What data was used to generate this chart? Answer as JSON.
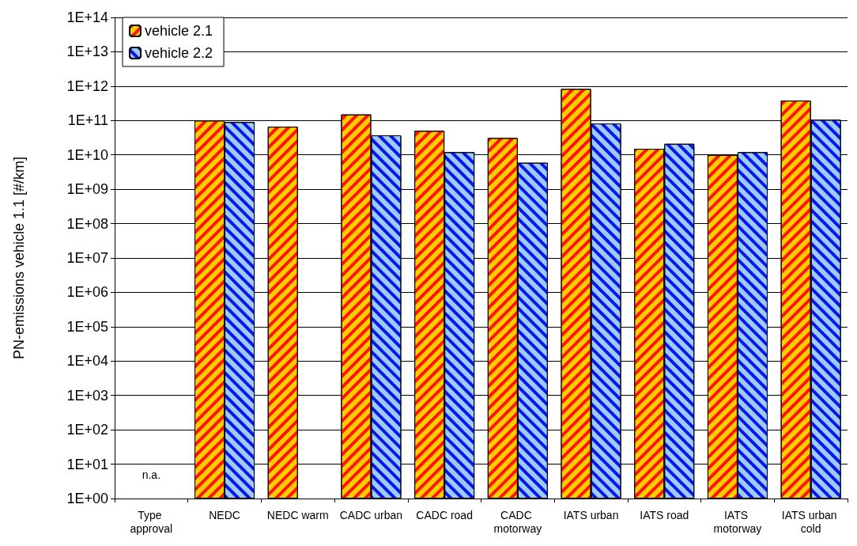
{
  "chart_data": {
    "type": "bar",
    "ylabel": "PN-emissions vehicle 1.1 [#/km]",
    "categories": [
      "Type approval",
      "NEDC",
      "NEDC warm",
      "CADC urban",
      "CADC road",
      "CADC motorway",
      "IATS urban",
      "IATS road",
      "IATS motorway",
      "IATS urban cold"
    ],
    "series": [
      {
        "name": "vehicle 2.1",
        "color": "#ffcc00",
        "values": [
          null,
          100000000000.0,
          66000000000.0,
          150000000000.0,
          50000000000.0,
          31000000000.0,
          830000000000.0,
          15000000000.0,
          10000000000.0,
          380000000000.0
        ]
      },
      {
        "name": "vehicle 2.2",
        "color": "#99ccff",
        "values": [
          null,
          90000000000.0,
          null,
          37000000000.0,
          12000000000.0,
          5900000000.0,
          82000000000.0,
          21000000000.0,
          12000000000.0,
          105000000000.0
        ]
      }
    ],
    "log": true,
    "ylim": [
      1,
      100000000000000.0
    ],
    "yticks": [
      {
        "value": 1,
        "label": "1E+00"
      },
      {
        "value": 10,
        "label": "1E+01"
      },
      {
        "value": 100,
        "label": "1E+02"
      },
      {
        "value": 1000.0,
        "label": "1E+03"
      },
      {
        "value": 10000.0,
        "label": "1E+04"
      },
      {
        "value": 100000.0,
        "label": "1E+05"
      },
      {
        "value": 1000000.0,
        "label": "1E+06"
      },
      {
        "value": 10000000.0,
        "label": "1E+07"
      },
      {
        "value": 100000000.0,
        "label": "1E+08"
      },
      {
        "value": 1000000000.0,
        "label": "1E+09"
      },
      {
        "value": 10000000000.0,
        "label": "1E+10"
      },
      {
        "value": 100000000000.0,
        "label": "1E+11"
      },
      {
        "value": 1000000000000.0,
        "label": "1E+12"
      },
      {
        "value": 10000000000000.0,
        "label": "1E+13"
      },
      {
        "value": 100000000000000.0,
        "label": "1E+14"
      }
    ],
    "grid": "y",
    "legend": "top left",
    "annotations": [
      "n.a."
    ]
  }
}
